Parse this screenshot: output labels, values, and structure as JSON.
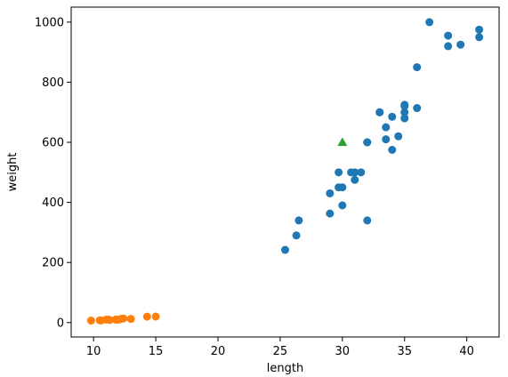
{
  "chart_data": {
    "type": "scatter",
    "xlabel": "length",
    "ylabel": "weight",
    "xlim": [
      8.2,
      42.6
    ],
    "ylim": [
      -48,
      1050
    ],
    "xticks": [
      10,
      15,
      20,
      25,
      30,
      35,
      40
    ],
    "yticks": [
      0,
      200,
      400,
      600,
      800,
      1000
    ],
    "grid": false,
    "series": [
      {
        "color": "#1f77b4",
        "marker": "circle",
        "points": [
          [
            25.4,
            242
          ],
          [
            26.3,
            290
          ],
          [
            26.5,
            340
          ],
          [
            29.0,
            363
          ],
          [
            29.0,
            430
          ],
          [
            29.7,
            450
          ],
          [
            29.7,
            500
          ],
          [
            30.0,
            390
          ],
          [
            30.0,
            450
          ],
          [
            30.7,
            500
          ],
          [
            31.0,
            475
          ],
          [
            31.0,
            500
          ],
          [
            31.5,
            500
          ],
          [
            32.0,
            340
          ],
          [
            32.0,
            600
          ],
          [
            32.0,
            600
          ],
          [
            33.0,
            700
          ],
          [
            33.0,
            700
          ],
          [
            33.5,
            610
          ],
          [
            33.5,
            650
          ],
          [
            34.0,
            575
          ],
          [
            34.0,
            685
          ],
          [
            34.5,
            620
          ],
          [
            35.0,
            680
          ],
          [
            35.0,
            700
          ],
          [
            35.0,
            725
          ],
          [
            35.0,
            720
          ],
          [
            36.0,
            714
          ],
          [
            36.0,
            850
          ],
          [
            37.0,
            1000
          ],
          [
            38.5,
            920
          ],
          [
            38.5,
            955
          ],
          [
            39.5,
            925
          ],
          [
            41.0,
            975
          ],
          [
            41.0,
            950
          ]
        ]
      },
      {
        "color": "#ff7f0e",
        "marker": "circle",
        "points": [
          [
            9.8,
            6.7
          ],
          [
            10.5,
            7.5
          ],
          [
            10.6,
            7.0
          ],
          [
            11.0,
            9.7
          ],
          [
            11.2,
            9.8
          ],
          [
            11.3,
            8.7
          ],
          [
            11.8,
            10.0
          ],
          [
            11.8,
            9.9
          ],
          [
            12.0,
            9.8
          ],
          [
            12.2,
            12.2
          ],
          [
            12.4,
            13.4
          ],
          [
            13.0,
            12.2
          ],
          [
            14.3,
            19.7
          ],
          [
            15.0,
            19.9
          ]
        ]
      },
      {
        "color": "#2ca02c",
        "marker": "triangle",
        "points": [
          [
            30,
            600
          ]
        ]
      }
    ]
  }
}
